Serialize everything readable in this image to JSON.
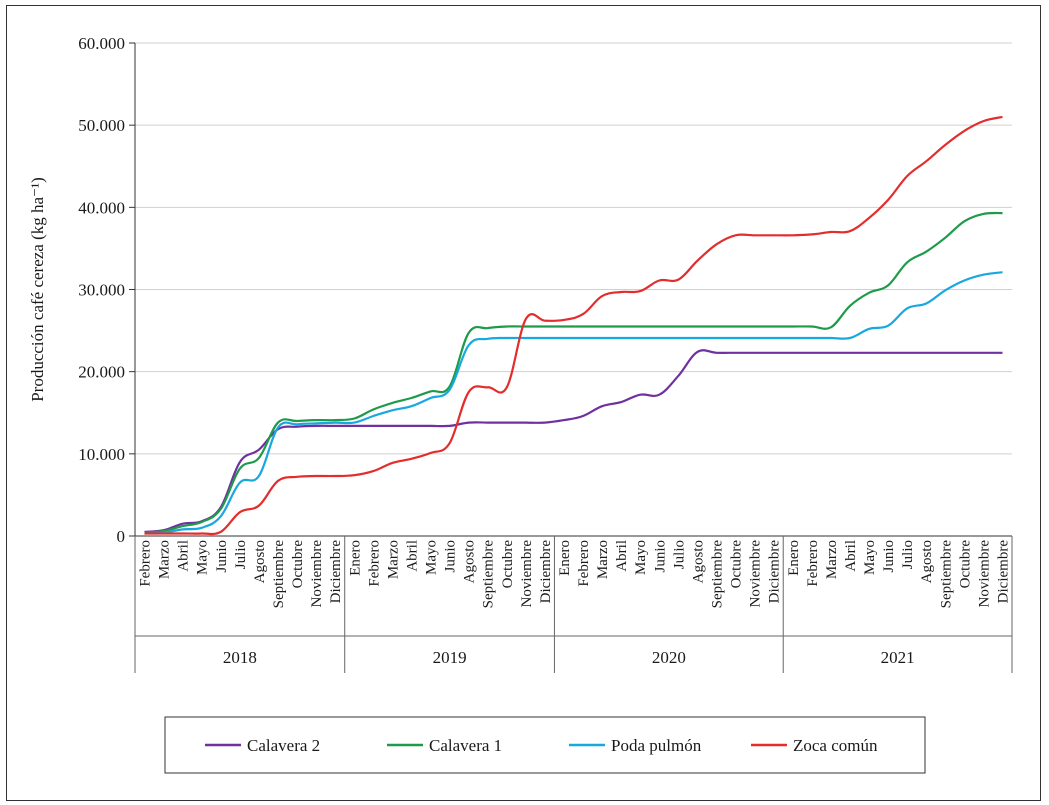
{
  "chart_data": {
    "type": "line",
    "ylabel": "Producción café cereza (kg ha⁻¹)",
    "ylim": [
      0,
      60000
    ],
    "yticks": [
      "0",
      "10.000",
      "20.000",
      "30.000",
      "40.000",
      "50.000",
      "60.000"
    ],
    "ytick_values": [
      0,
      10000,
      20000,
      30000,
      40000,
      50000,
      60000
    ],
    "grid": true,
    "legend_position": "bottom",
    "year_groups": [
      {
        "year": "2018",
        "months": [
          "Febrero",
          "Marzo",
          "Abril",
          "Mayo",
          "Junio",
          "Julio",
          "Agosto",
          "Septiembre",
          "Octubre",
          "Noviembre",
          "Diciembre"
        ]
      },
      {
        "year": "2019",
        "months": [
          "Enero",
          "Febrero",
          "Marzo",
          "Abril",
          "Mayo",
          "Junio",
          "Agosto",
          "Septiembre",
          "Octubre",
          "Noviembre",
          "Diciembre"
        ]
      },
      {
        "year": "2020",
        "months": [
          "Enero",
          "Febrero",
          "Marzo",
          "Abril",
          "Mayo",
          "Junio",
          "Julio",
          "Agosto",
          "Septiembre",
          "Octubre",
          "Noviembre",
          "Diciembre"
        ]
      },
      {
        "year": "2021",
        "months": [
          "Enero",
          "Febrero",
          "Marzo",
          "Abril",
          "Mayo",
          "Junio",
          "Julio",
          "Agosto",
          "Septiembre",
          "Octubre",
          "Noviembre",
          "Diciembre"
        ]
      }
    ],
    "series": [
      {
        "name": "Calavera 2",
        "color": "#7030a0",
        "values": [
          500,
          700,
          1500,
          1800,
          3500,
          9000,
          10500,
          13000,
          13300,
          13400,
          13400,
          13400,
          13400,
          13400,
          13400,
          13400,
          13400,
          13800,
          13800,
          13800,
          13800,
          13800,
          14100,
          14600,
          15800,
          16300,
          17200,
          17200,
          19500,
          22400,
          22300,
          22300,
          22300,
          22300,
          22300,
          22300,
          22300,
          22300,
          22300,
          22300,
          22300,
          22300,
          22300,
          22300,
          22300,
          22300
        ]
      },
      {
        "name": "Calavera 1",
        "color": "#1e9b4a",
        "values": [
          400,
          600,
          1200,
          1700,
          3300,
          8200,
          9500,
          13800,
          14000,
          14100,
          14100,
          14300,
          15400,
          16200,
          16800,
          17600,
          18200,
          24700,
          25300,
          25500,
          25500,
          25500,
          25500,
          25500,
          25500,
          25500,
          25500,
          25500,
          25500,
          25500,
          25500,
          25500,
          25500,
          25500,
          25500,
          25500,
          25400,
          28000,
          29600,
          30500,
          33300,
          34600,
          36300,
          38300,
          39200,
          39300
        ]
      },
      {
        "name": "Poda pulmón",
        "color": "#18a8e0",
        "values": [
          300,
          400,
          800,
          1000,
          2400,
          6500,
          7300,
          13200,
          13600,
          13700,
          13800,
          13800,
          14600,
          15300,
          15800,
          16800,
          17800,
          23200,
          24000,
          24100,
          24100,
          24100,
          24100,
          24100,
          24100,
          24100,
          24100,
          24100,
          24100,
          24100,
          24100,
          24100,
          24100,
          24100,
          24100,
          24100,
          24100,
          24100,
          25200,
          25600,
          27700,
          28300,
          29900,
          31100,
          31800,
          32100
        ]
      },
      {
        "name": "Zoca común",
        "color": "#e32d2d",
        "values": [
          300,
          300,
          300,
          300,
          500,
          2900,
          3700,
          6700,
          7200,
          7300,
          7300,
          7400,
          7900,
          8900,
          9400,
          10100,
          11300,
          17500,
          18100,
          18100,
          26400,
          26200,
          26300,
          27000,
          29200,
          29700,
          29800,
          31100,
          31200,
          33500,
          35500,
          36600,
          36600,
          36600,
          36600,
          36700,
          37000,
          37100,
          38700,
          40900,
          43800,
          45600,
          47600,
          49300,
          50500,
          51000
        ]
      }
    ]
  }
}
